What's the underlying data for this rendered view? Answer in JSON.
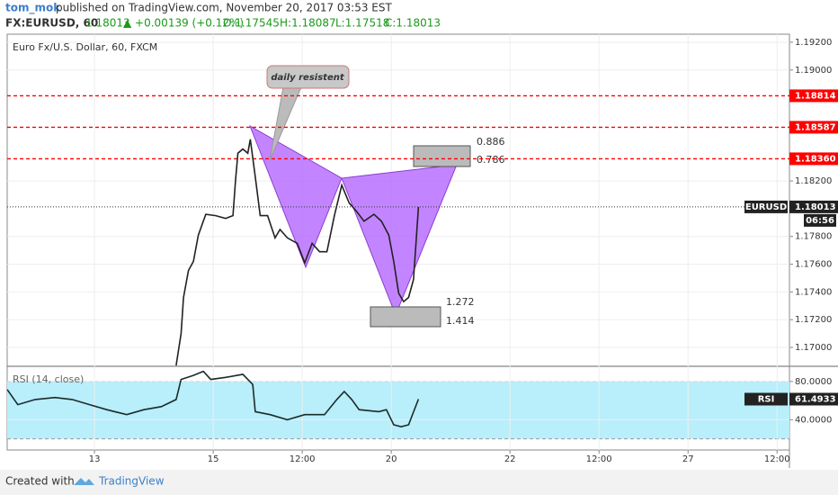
{
  "header": {
    "author": "tom_mok",
    "published": "published on TradingView.com, November 20, 2017 03:53 EST",
    "symbol": "FX:EURUSD, 60",
    "last": "1.18013",
    "change": "▲ +0.00139 (+0.12%)",
    "open": "O:1.17545",
    "high": "H:1.18087",
    "low": "L:1.17518",
    "close": "C:1.18013"
  },
  "footer": {
    "created": "Created with",
    "brand": "TradingView"
  },
  "chart_data": [
    {
      "type": "line",
      "title": "Euro Fx/U.S. Dollar, 60, FXCM",
      "x": [
        33,
        35,
        36,
        38,
        40,
        42,
        44,
        45,
        49,
        53,
        56,
        57,
        58,
        60,
        62,
        63,
        65,
        67,
        70,
        73,
        75,
        78,
        82,
        85,
        88,
        91,
        94,
        97,
        100,
        103,
        106,
        109,
        113,
        116,
        119,
        121,
        123,
        125,
        127,
        129,
        131
      ],
      "series": [
        {
          "name": "EURUSD",
          "color": "#222222",
          "values": [
            1.1687,
            1.171,
            1.1736,
            1.17555,
            1.1762,
            1.1781,
            1.1791,
            1.1796,
            1.1795,
            1.1793,
            1.1795,
            1.182,
            1.184,
            1.1843,
            1.184,
            1.185,
            1.1823,
            1.1795,
            1.1795,
            1.1779,
            1.1785,
            1.1779,
            1.1775,
            1.1761,
            1.1775,
            1.1769,
            1.1769,
            1.1795,
            1.1817,
            1.1804,
            1.1798,
            1.1791,
            1.1796,
            1.1791,
            1.1781,
            1.1762,
            1.1739,
            1.1733,
            1.1736,
            1.1749,
            1.18013
          ]
        }
      ],
      "countdown": "06:56",
      "xlim": [
        -35.3,
        281
      ],
      "ylim": [
        1.16864,
        1.19258
      ],
      "yticks": [
        {
          "value": 1.192,
          "label": "1.19200"
        },
        {
          "value": 1.19,
          "label": "1.19000"
        },
        {
          "value": 1.182,
          "label": "1.18200"
        },
        {
          "value": 1.178,
          "label": "1.17800"
        },
        {
          "value": 1.176,
          "label": "1.17600"
        },
        {
          "value": 1.174,
          "label": "1.17400"
        },
        {
          "value": 1.172,
          "label": "1.17200"
        },
        {
          "value": 1.17,
          "label": "1.17000"
        }
      ],
      "hlines": [
        {
          "value": 1.18814,
          "label": "1.18814",
          "color": "#ff0000"
        },
        {
          "value": 1.18587,
          "label": "1.18587",
          "color": "#ff0000"
        },
        {
          "value": 1.1836,
          "label": "1.18360",
          "color": "#ff0000"
        }
      ],
      "annotations": [
        "daily resistent",
        "0.886",
        "0.786",
        "1.272",
        "1.414"
      ],
      "grid": true
    },
    {
      "type": "line",
      "title": "RSI (14, close)",
      "x": [
        -35.3,
        -31,
        -24,
        -16,
        -9,
        -2,
        5,
        13,
        20,
        27,
        33,
        35,
        40,
        44,
        47,
        53,
        60,
        64,
        65,
        71,
        78,
        85,
        93,
        98,
        101,
        104,
        107,
        115,
        118,
        121,
        124,
        127,
        131
      ],
      "series": [
        {
          "name": "RSI",
          "color": "#1b2b2b",
          "values": [
            71.6,
            55.8,
            61.1,
            63.2,
            61.1,
            55.8,
            50.5,
            45.3,
            50.5,
            53.7,
            61.1,
            82.1,
            86.3,
            90.5,
            82.1,
            84.2,
            87.4,
            76.8,
            48.4,
            45.3,
            40.0,
            45.3,
            45.3,
            61.1,
            69.5,
            61.1,
            50.5,
            48.4,
            50.5,
            34.7,
            32.6,
            34.7,
            61.4933
          ]
        }
      ],
      "band": [
        20,
        80
      ],
      "band_color": "#b9eefb",
      "xlim": [
        -35.3,
        281
      ],
      "ylim": [
        8.4,
        95.8
      ],
      "yticks": [
        {
          "value": 80,
          "label": "80.0000"
        },
        {
          "value": 40,
          "label": "40.0000"
        }
      ],
      "xticks": [
        {
          "value": 0,
          "label": "13"
        },
        {
          "value": 48,
          "label": "15"
        },
        {
          "value": 84,
          "label": "12:00"
        },
        {
          "value": 120,
          "label": "20"
        },
        {
          "value": 168,
          "label": "22"
        },
        {
          "value": 204,
          "label": "12:00"
        },
        {
          "value": 240,
          "label": "27"
        },
        {
          "value": 276,
          "label": "12:00"
        }
      ],
      "grid": true
    }
  ]
}
